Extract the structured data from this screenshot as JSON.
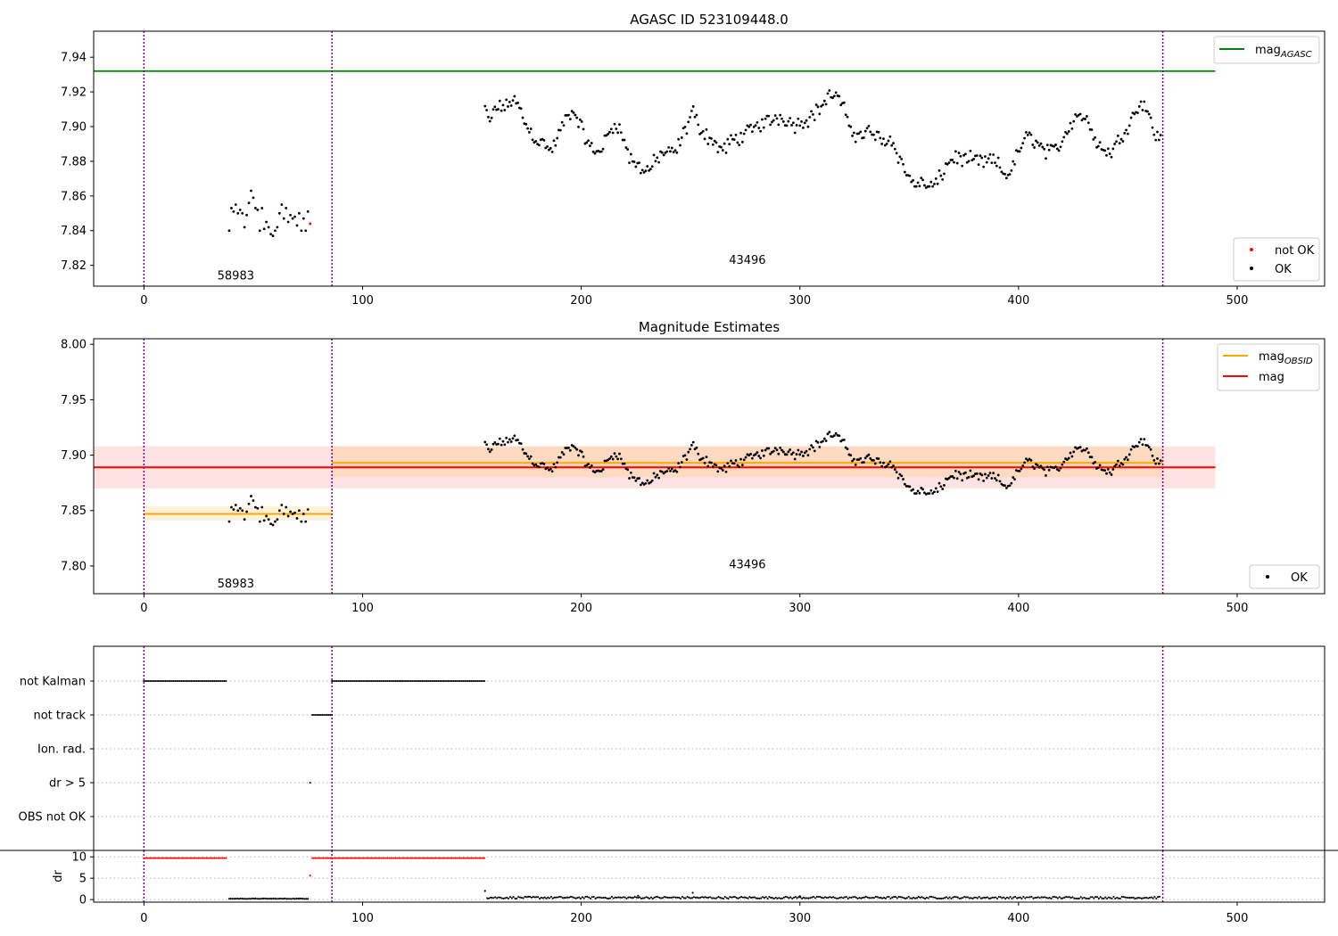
{
  "figure": {
    "background": "#ffffff"
  },
  "colors": {
    "ok": "#000000",
    "not_ok": "#ff0000",
    "mag_agasc": "#008000",
    "mag_obsid": "#ffa500",
    "mag": "#ff0000",
    "obs_boundary": "#800080",
    "grid": "#b0b0b0"
  },
  "chart_data": [
    {
      "type": "scatter",
      "title": "AGASC ID 523109448.0",
      "xlim": [
        -23,
        540
      ],
      "ylim": [
        7.808,
        7.955
      ],
      "x_ticks": [
        0,
        100,
        200,
        300,
        400,
        500
      ],
      "y_ticks": [
        7.82,
        7.84,
        7.86,
        7.88,
        7.9,
        7.92,
        7.94
      ],
      "y_tick_labels": [
        "7.82",
        "7.84",
        "7.86",
        "7.88",
        "7.90",
        "7.92",
        "7.94"
      ],
      "hlines": [
        {
          "name": "mag_AGASC",
          "label_main": "mag",
          "label_sub": "AGASC",
          "y": 7.932,
          "x0": -23,
          "x1": 490,
          "color": "#008000"
        }
      ],
      "obs_boundaries": [
        0,
        86,
        466
      ],
      "obs_labels": [
        {
          "text": "58983",
          "x": 42,
          "y": 7.814
        },
        {
          "text": "43496",
          "x": 276,
          "y": 7.823
        }
      ],
      "series": [
        {
          "name": "not OK",
          "color": "#ff0000",
          "x": [
            76
          ],
          "y": [
            7.844
          ]
        },
        {
          "name": "OK",
          "color": "#000000",
          "source": "photometry"
        }
      ],
      "legends": [
        {
          "position": "top-right",
          "items": [
            "mag_AGASC"
          ]
        },
        {
          "position": "bottom-right",
          "items": [
            "not OK",
            "OK"
          ]
        }
      ]
    },
    {
      "type": "scatter",
      "title": "Magnitude Estimates",
      "xlim": [
        -23,
        540
      ],
      "ylim": [
        7.775,
        8.005
      ],
      "x_ticks": [
        0,
        100,
        200,
        300,
        400,
        500
      ],
      "y_ticks": [
        7.8,
        7.85,
        7.9,
        7.95,
        8.0
      ],
      "y_tick_labels": [
        "7.80",
        "7.85",
        "7.90",
        "7.95",
        "8.00"
      ],
      "bands": [
        {
          "x0": -23,
          "x1": 490,
          "y0": 7.87,
          "y1": 7.908,
          "color": "#ff0000",
          "opacity": 0.11
        },
        {
          "x0": 0,
          "x1": 86,
          "y0": 7.841,
          "y1": 7.854,
          "color": "#ffa500",
          "opacity": 0.14
        },
        {
          "x0": 86,
          "x1": 466,
          "y0": 7.88,
          "y1": 7.908,
          "color": "#ffa500",
          "opacity": 0.14
        }
      ],
      "hlines": [
        {
          "name": "mag_OBSID",
          "label_main": "mag",
          "label_sub": "OBSID",
          "segments": [
            {
              "x0": 0,
              "x1": 86,
              "y": 7.847
            },
            {
              "x0": 86,
              "x1": 466,
              "y": 7.893
            }
          ],
          "color": "#ffa500"
        },
        {
          "name": "mag",
          "label_main": "mag",
          "label_sub": "",
          "segments": [
            {
              "x0": -23,
              "x1": 490,
              "y": 7.889
            }
          ],
          "color": "#ff0000"
        }
      ],
      "obs_boundaries": [
        0,
        86,
        466
      ],
      "obs_labels": [
        {
          "text": "58983",
          "x": 42,
          "y": 7.784
        },
        {
          "text": "43496",
          "x": 276,
          "y": 7.801
        }
      ],
      "series": [
        {
          "name": "OK",
          "color": "#000000",
          "source": "photometry"
        }
      ],
      "legends": [
        {
          "position": "top-right",
          "items": [
            "mag_OBSID",
            "mag"
          ]
        },
        {
          "position": "bottom-right",
          "items": [
            "OK"
          ]
        }
      ]
    },
    {
      "type": "scatter",
      "title": "",
      "xlim": [
        -23,
        540
      ],
      "categories": [
        "not Kalman",
        "not track",
        "Ion. rad.",
        "dr > 5",
        "OBS not OK"
      ],
      "flag_rows": [
        {
          "label": "not Kalman",
          "ranges": [
            [
              0,
              38
            ],
            [
              86,
              156
            ]
          ]
        },
        {
          "label": "not track",
          "ranges": [
            [
              77,
              86
            ]
          ]
        },
        {
          "label": "Ion. rad.",
          "ranges": []
        },
        {
          "label": "dr > 5",
          "ranges": [
            [
              76,
              76
            ]
          ]
        },
        {
          "label": "OBS not OK",
          "ranges": []
        }
      ],
      "obs_boundaries": [
        0,
        86,
        466
      ]
    },
    {
      "type": "scatter",
      "ylabel": "dr",
      "xlim": [
        -23,
        540
      ],
      "ylim": [
        -0.6,
        11.5
      ],
      "x_ticks": [
        0,
        100,
        200,
        300,
        400,
        500
      ],
      "x_tick_labels": [
        "0",
        "100",
        "200",
        "300",
        "400",
        "500"
      ],
      "y_ticks": [
        0,
        5,
        10
      ],
      "y_tick_labels": [
        "0",
        "5",
        "10"
      ],
      "not_ok_ranges": [
        [
          0,
          38
        ],
        [
          77,
          156
        ]
      ],
      "not_ok_value": 9.7,
      "outlier": {
        "x": 76,
        "y": 5.6
      },
      "obs_boundaries": [
        0,
        86,
        466
      ]
    }
  ],
  "photometry": {
    "obs1": {
      "x": [
        39,
        40,
        41,
        42,
        43,
        44,
        45,
        46,
        47,
        48,
        49,
        50,
        51,
        52,
        53,
        54,
        55,
        56,
        57,
        58,
        59,
        60,
        61,
        62,
        63,
        64,
        65,
        66,
        67,
        68,
        69,
        70,
        71,
        72,
        73,
        74,
        75
      ],
      "y": [
        7.84,
        7.853,
        7.851,
        7.855,
        7.85,
        7.852,
        7.85,
        7.842,
        7.849,
        7.856,
        7.863,
        7.859,
        7.853,
        7.852,
        7.84,
        7.853,
        7.841,
        7.845,
        7.842,
        7.838,
        7.837,
        7.84,
        7.842,
        7.85,
        7.855,
        7.847,
        7.853,
        7.845,
        7.849,
        7.847,
        7.848,
        7.843,
        7.85,
        7.84,
        7.847,
        7.84,
        7.851
      ]
    },
    "obs2": {
      "anchors": [
        [
          156,
          7.912
        ],
        [
          157,
          7.904
        ],
        [
          159,
          7.902
        ],
        [
          160,
          7.912
        ],
        [
          162,
          7.91
        ],
        [
          164,
          7.912
        ],
        [
          166,
          7.911
        ],
        [
          167,
          7.914
        ],
        [
          169,
          7.916
        ],
        [
          171,
          7.912
        ],
        [
          173,
          7.907
        ],
        [
          175,
          7.9
        ],
        [
          178,
          7.895
        ],
        [
          181,
          7.891
        ],
        [
          184,
          7.89
        ],
        [
          186,
          7.885
        ],
        [
          189,
          7.893
        ],
        [
          192,
          7.902
        ],
        [
          195,
          7.908
        ],
        [
          198,
          7.906
        ],
        [
          201,
          7.896
        ],
        [
          204,
          7.888
        ],
        [
          207,
          7.885
        ],
        [
          210,
          7.889
        ],
        [
          213,
          7.897
        ],
        [
          216,
          7.903
        ],
        [
          219,
          7.894
        ],
        [
          222,
          7.882
        ],
        [
          225,
          7.878
        ],
        [
          228,
          7.876
        ],
        [
          231,
          7.875
        ],
        [
          234,
          7.88
        ],
        [
          237,
          7.885
        ],
        [
          240,
          7.884
        ],
        [
          243,
          7.885
        ],
        [
          246,
          7.893
        ],
        [
          249,
          7.902
        ],
        [
          251,
          7.91
        ],
        [
          253,
          7.902
        ],
        [
          256,
          7.897
        ],
        [
          259,
          7.893
        ],
        [
          262,
          7.889
        ],
        [
          265,
          7.886
        ],
        [
          268,
          7.891
        ],
        [
          271,
          7.893
        ],
        [
          274,
          7.895
        ],
        [
          277,
          7.897
        ],
        [
          280,
          7.9
        ],
        [
          283,
          7.902
        ],
        [
          286,
          7.903
        ],
        [
          289,
          7.905
        ],
        [
          292,
          7.906
        ],
        [
          295,
          7.903
        ],
        [
          298,
          7.901
        ],
        [
          301,
          7.903
        ],
        [
          304,
          7.905
        ],
        [
          307,
          7.908
        ],
        [
          310,
          7.912
        ],
        [
          313,
          7.917
        ],
        [
          316,
          7.919
        ],
        [
          319,
          7.913
        ],
        [
          322,
          7.903
        ],
        [
          325,
          7.896
        ],
        [
          328,
          7.895
        ],
        [
          331,
          7.897
        ],
        [
          334,
          7.896
        ],
        [
          337,
          7.892
        ],
        [
          340,
          7.893
        ],
        [
          343,
          7.891
        ],
        [
          346,
          7.88
        ],
        [
          349,
          7.872
        ],
        [
          352,
          7.868
        ],
        [
          355,
          7.867
        ],
        [
          358,
          7.866
        ],
        [
          361,
          7.865
        ],
        [
          364,
          7.87
        ],
        [
          367,
          7.878
        ],
        [
          370,
          7.882
        ],
        [
          373,
          7.882
        ],
        [
          376,
          7.88
        ],
        [
          379,
          7.881
        ],
        [
          382,
          7.88
        ],
        [
          385,
          7.879
        ],
        [
          388,
          7.881
        ],
        [
          391,
          7.877
        ],
        [
          394,
          7.872
        ],
        [
          397,
          7.875
        ],
        [
          400,
          7.886
        ],
        [
          403,
          7.893
        ],
        [
          406,
          7.894
        ],
        [
          409,
          7.89
        ],
        [
          412,
          7.886
        ],
        [
          415,
          7.885
        ],
        [
          418,
          7.888
        ],
        [
          421,
          7.895
        ],
        [
          424,
          7.902
        ],
        [
          427,
          7.908
        ],
        [
          430,
          7.905
        ],
        [
          433,
          7.9
        ],
        [
          436,
          7.891
        ],
        [
          439,
          7.886
        ],
        [
          442,
          7.885
        ],
        [
          445,
          7.89
        ],
        [
          448,
          7.897
        ],
        [
          451,
          7.903
        ],
        [
          454,
          7.91
        ],
        [
          457,
          7.915
        ],
        [
          460,
          7.905
        ],
        [
          463,
          7.894
        ],
        [
          465,
          7.893
        ]
      ],
      "step": 0.75,
      "noise_amp": 0.0035
    },
    "dr": {
      "obs1": {
        "x0": 39,
        "x1": 75,
        "level": 0.15
      },
      "obs2": {
        "x0": 157,
        "x1": 465,
        "level": 0.45,
        "spikes": [
          [
            156,
            2.0
          ],
          [
            251,
            1.6
          ],
          [
            226,
            0.9
          ],
          [
            300,
            0.8
          ]
        ]
      }
    }
  }
}
